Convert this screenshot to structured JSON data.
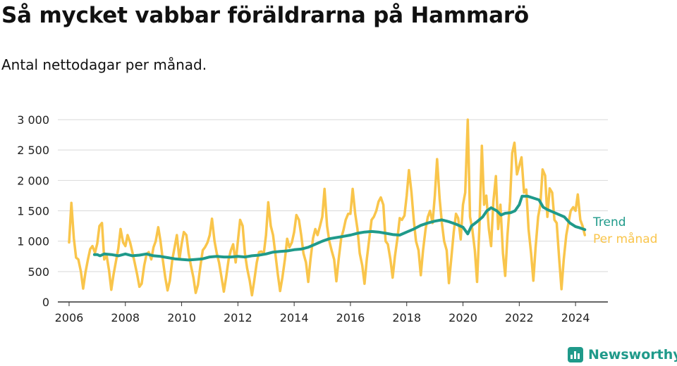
{
  "header": {
    "title": "Så mycket vabbar föräldrarna på Hammarö",
    "subtitle": "Antal nettodagar per månad."
  },
  "brand": {
    "name": "Newsworthy",
    "icon": "bar-chart-logo-icon",
    "color": "#1f9a8a"
  },
  "chart_data": {
    "type": "line",
    "title": "Så mycket vabbar föräldrarna på Hammarö",
    "subtitle": "Antal nettodagar per månad.",
    "xlabel": "",
    "ylabel": "",
    "xlim": [
      2005.6,
      2025.15
    ],
    "ylim": [
      0,
      3000
    ],
    "x_ticks": [
      2006,
      2008,
      2010,
      2012,
      2014,
      2016,
      2018,
      2020,
      2022,
      2024
    ],
    "y_ticks": [
      0,
      500,
      1000,
      1500,
      2000,
      2500,
      3000
    ],
    "y_tick_labels": [
      "0",
      "500",
      "1 000",
      "1 500",
      "2 000",
      "2 500",
      "3 000"
    ],
    "grid": "horizontal",
    "legend": "direct labels at right end of lines",
    "series": [
      {
        "name": "Per månad",
        "color": "#f9c54b",
        "points": [
          [
            2006.0,
            980
          ],
          [
            2006.08,
            1630
          ],
          [
            2006.17,
            1050
          ],
          [
            2006.25,
            730
          ],
          [
            2006.33,
            700
          ],
          [
            2006.42,
            500
          ],
          [
            2006.5,
            220
          ],
          [
            2006.58,
            480
          ],
          [
            2006.67,
            700
          ],
          [
            2006.75,
            870
          ],
          [
            2006.83,
            920
          ],
          [
            2006.92,
            810
          ],
          [
            2007.0,
            960
          ],
          [
            2007.08,
            1250
          ],
          [
            2007.17,
            1300
          ],
          [
            2007.25,
            700
          ],
          [
            2007.33,
            780
          ],
          [
            2007.42,
            520
          ],
          [
            2007.5,
            200
          ],
          [
            2007.58,
            450
          ],
          [
            2007.67,
            680
          ],
          [
            2007.75,
            880
          ],
          [
            2007.83,
            1200
          ],
          [
            2007.92,
            980
          ],
          [
            2008.0,
            920
          ],
          [
            2008.08,
            1100
          ],
          [
            2008.17,
            980
          ],
          [
            2008.25,
            820
          ],
          [
            2008.33,
            650
          ],
          [
            2008.42,
            450
          ],
          [
            2008.5,
            250
          ],
          [
            2008.58,
            300
          ],
          [
            2008.67,
            600
          ],
          [
            2008.75,
            780
          ],
          [
            2008.83,
            820
          ],
          [
            2008.92,
            700
          ],
          [
            2009.0,
            900
          ],
          [
            2009.08,
            1000
          ],
          [
            2009.17,
            1230
          ],
          [
            2009.25,
            1000
          ],
          [
            2009.33,
            700
          ],
          [
            2009.42,
            400
          ],
          [
            2009.5,
            190
          ],
          [
            2009.58,
            350
          ],
          [
            2009.67,
            700
          ],
          [
            2009.75,
            900
          ],
          [
            2009.83,
            1100
          ],
          [
            2009.92,
            700
          ],
          [
            2010.0,
            950
          ],
          [
            2010.08,
            1150
          ],
          [
            2010.17,
            1100
          ],
          [
            2010.25,
            800
          ],
          [
            2010.33,
            600
          ],
          [
            2010.42,
            400
          ],
          [
            2010.5,
            150
          ],
          [
            2010.58,
            280
          ],
          [
            2010.67,
            600
          ],
          [
            2010.75,
            850
          ],
          [
            2010.83,
            900
          ],
          [
            2010.92,
            980
          ],
          [
            2011.0,
            1100
          ],
          [
            2011.08,
            1370
          ],
          [
            2011.17,
            1000
          ],
          [
            2011.25,
            800
          ],
          [
            2011.33,
            650
          ],
          [
            2011.42,
            400
          ],
          [
            2011.5,
            170
          ],
          [
            2011.58,
            400
          ],
          [
            2011.67,
            700
          ],
          [
            2011.75,
            850
          ],
          [
            2011.83,
            950
          ],
          [
            2011.92,
            650
          ],
          [
            2012.0,
            1000
          ],
          [
            2012.08,
            1350
          ],
          [
            2012.17,
            1250
          ],
          [
            2012.25,
            800
          ],
          [
            2012.33,
            550
          ],
          [
            2012.42,
            350
          ],
          [
            2012.5,
            110
          ],
          [
            2012.58,
            350
          ],
          [
            2012.67,
            650
          ],
          [
            2012.75,
            820
          ],
          [
            2012.83,
            830
          ],
          [
            2012.92,
            800
          ],
          [
            2013.0,
            1100
          ],
          [
            2013.08,
            1640
          ],
          [
            2013.17,
            1250
          ],
          [
            2013.25,
            1100
          ],
          [
            2013.33,
            800
          ],
          [
            2013.42,
            450
          ],
          [
            2013.5,
            180
          ],
          [
            2013.58,
            400
          ],
          [
            2013.67,
            700
          ],
          [
            2013.75,
            1040
          ],
          [
            2013.83,
            900
          ],
          [
            2013.92,
            980
          ],
          [
            2014.0,
            1150
          ],
          [
            2014.08,
            1430
          ],
          [
            2014.17,
            1350
          ],
          [
            2014.25,
            1100
          ],
          [
            2014.33,
            800
          ],
          [
            2014.42,
            650
          ],
          [
            2014.5,
            330
          ],
          [
            2014.58,
            700
          ],
          [
            2014.67,
            1050
          ],
          [
            2014.75,
            1200
          ],
          [
            2014.83,
            1100
          ],
          [
            2014.92,
            1250
          ],
          [
            2015.0,
            1400
          ],
          [
            2015.08,
            1860
          ],
          [
            2015.17,
            1250
          ],
          [
            2015.25,
            1000
          ],
          [
            2015.33,
            850
          ],
          [
            2015.42,
            700
          ],
          [
            2015.5,
            340
          ],
          [
            2015.58,
            700
          ],
          [
            2015.67,
            1050
          ],
          [
            2015.75,
            1180
          ],
          [
            2015.83,
            1350
          ],
          [
            2015.92,
            1450
          ],
          [
            2016.0,
            1450
          ],
          [
            2016.08,
            1860
          ],
          [
            2016.17,
            1450
          ],
          [
            2016.25,
            1200
          ],
          [
            2016.33,
            800
          ],
          [
            2016.42,
            600
          ],
          [
            2016.5,
            300
          ],
          [
            2016.58,
            700
          ],
          [
            2016.67,
            1050
          ],
          [
            2016.75,
            1350
          ],
          [
            2016.83,
            1400
          ],
          [
            2016.92,
            1500
          ],
          [
            2017.0,
            1650
          ],
          [
            2017.08,
            1720
          ],
          [
            2017.17,
            1600
          ],
          [
            2017.25,
            1000
          ],
          [
            2017.33,
            950
          ],
          [
            2017.42,
            700
          ],
          [
            2017.5,
            400
          ],
          [
            2017.58,
            750
          ],
          [
            2017.67,
            1050
          ],
          [
            2017.75,
            1380
          ],
          [
            2017.83,
            1350
          ],
          [
            2017.92,
            1420
          ],
          [
            2018.0,
            1750
          ],
          [
            2018.08,
            2170
          ],
          [
            2018.17,
            1800
          ],
          [
            2018.25,
            1350
          ],
          [
            2018.33,
            1000
          ],
          [
            2018.42,
            850
          ],
          [
            2018.5,
            440
          ],
          [
            2018.58,
            850
          ],
          [
            2018.67,
            1200
          ],
          [
            2018.75,
            1400
          ],
          [
            2018.83,
            1500
          ],
          [
            2018.92,
            1300
          ],
          [
            2019.0,
            1750
          ],
          [
            2019.08,
            2350
          ],
          [
            2019.17,
            1700
          ],
          [
            2019.25,
            1300
          ],
          [
            2019.33,
            1000
          ],
          [
            2019.42,
            850
          ],
          [
            2019.5,
            310
          ],
          [
            2019.58,
            700
          ],
          [
            2019.67,
            1150
          ],
          [
            2019.75,
            1450
          ],
          [
            2019.83,
            1380
          ],
          [
            2019.92,
            1030
          ],
          [
            2020.0,
            1600
          ],
          [
            2020.08,
            1800
          ],
          [
            2020.17,
            3000
          ],
          [
            2020.25,
            1400
          ],
          [
            2020.33,
            1200
          ],
          [
            2020.42,
            850
          ],
          [
            2020.5,
            330
          ],
          [
            2020.58,
            1200
          ],
          [
            2020.67,
            2570
          ],
          [
            2020.75,
            1600
          ],
          [
            2020.83,
            1750
          ],
          [
            2020.92,
            1200
          ],
          [
            2021.0,
            920
          ],
          [
            2021.08,
            1650
          ],
          [
            2021.17,
            2070
          ],
          [
            2021.25,
            1200
          ],
          [
            2021.33,
            1600
          ],
          [
            2021.42,
            800
          ],
          [
            2021.5,
            430
          ],
          [
            2021.58,
            1100
          ],
          [
            2021.67,
            1650
          ],
          [
            2021.75,
            2450
          ],
          [
            2021.83,
            2620
          ],
          [
            2021.92,
            2100
          ],
          [
            2022.0,
            2240
          ],
          [
            2022.08,
            2380
          ],
          [
            2022.17,
            1800
          ],
          [
            2022.25,
            1850
          ],
          [
            2022.33,
            1200
          ],
          [
            2022.42,
            800
          ],
          [
            2022.5,
            350
          ],
          [
            2022.58,
            900
          ],
          [
            2022.67,
            1400
          ],
          [
            2022.75,
            1600
          ],
          [
            2022.83,
            2180
          ],
          [
            2022.92,
            2080
          ],
          [
            2023.0,
            1400
          ],
          [
            2023.08,
            1870
          ],
          [
            2023.17,
            1800
          ],
          [
            2023.25,
            1350
          ],
          [
            2023.33,
            1300
          ],
          [
            2023.42,
            700
          ],
          [
            2023.5,
            210
          ],
          [
            2023.58,
            700
          ],
          [
            2023.67,
            1100
          ],
          [
            2023.75,
            1300
          ],
          [
            2023.83,
            1500
          ],
          [
            2023.92,
            1560
          ],
          [
            2024.0,
            1500
          ],
          [
            2024.08,
            1770
          ],
          [
            2024.17,
            1350
          ],
          [
            2024.25,
            1250
          ],
          [
            2024.33,
            1100
          ]
        ]
      },
      {
        "name": "Trend",
        "color": "#1f9a8a",
        "points": [
          [
            2006.9,
            780
          ],
          [
            2007.0,
            780
          ],
          [
            2007.1,
            760
          ],
          [
            2007.25,
            790
          ],
          [
            2007.5,
            780
          ],
          [
            2007.75,
            760
          ],
          [
            2008.0,
            790
          ],
          [
            2008.25,
            760
          ],
          [
            2008.5,
            770
          ],
          [
            2008.75,
            790
          ],
          [
            2009.0,
            760
          ],
          [
            2009.25,
            750
          ],
          [
            2009.5,
            730
          ],
          [
            2009.75,
            710
          ],
          [
            2010.0,
            700
          ],
          [
            2010.25,
            690
          ],
          [
            2010.5,
            700
          ],
          [
            2010.75,
            710
          ],
          [
            2011.0,
            740
          ],
          [
            2011.25,
            750
          ],
          [
            2011.5,
            740
          ],
          [
            2011.75,
            740
          ],
          [
            2012.0,
            750
          ],
          [
            2012.25,
            740
          ],
          [
            2012.5,
            760
          ],
          [
            2012.75,
            770
          ],
          [
            2013.0,
            790
          ],
          [
            2013.25,
            820
          ],
          [
            2013.5,
            830
          ],
          [
            2013.75,
            840
          ],
          [
            2014.0,
            860
          ],
          [
            2014.25,
            870
          ],
          [
            2014.5,
            900
          ],
          [
            2014.75,
            950
          ],
          [
            2015.0,
            1000
          ],
          [
            2015.25,
            1040
          ],
          [
            2015.5,
            1060
          ],
          [
            2015.75,
            1080
          ],
          [
            2016.0,
            1100
          ],
          [
            2016.25,
            1130
          ],
          [
            2016.5,
            1150
          ],
          [
            2016.75,
            1160
          ],
          [
            2017.0,
            1150
          ],
          [
            2017.25,
            1130
          ],
          [
            2017.5,
            1110
          ],
          [
            2017.75,
            1100
          ],
          [
            2018.0,
            1150
          ],
          [
            2018.25,
            1200
          ],
          [
            2018.5,
            1260
          ],
          [
            2018.75,
            1300
          ],
          [
            2019.0,
            1330
          ],
          [
            2019.25,
            1350
          ],
          [
            2019.5,
            1320
          ],
          [
            2019.75,
            1280
          ],
          [
            2020.0,
            1230
          ],
          [
            2020.17,
            1120
          ],
          [
            2020.3,
            1250
          ],
          [
            2020.5,
            1320
          ],
          [
            2020.7,
            1400
          ],
          [
            2020.85,
            1500
          ],
          [
            2021.0,
            1550
          ],
          [
            2021.2,
            1500
          ],
          [
            2021.35,
            1430
          ],
          [
            2021.5,
            1460
          ],
          [
            2021.7,
            1470
          ],
          [
            2021.85,
            1500
          ],
          [
            2022.0,
            1600
          ],
          [
            2022.1,
            1740
          ],
          [
            2022.3,
            1740
          ],
          [
            2022.5,
            1710
          ],
          [
            2022.7,
            1680
          ],
          [
            2022.85,
            1560
          ],
          [
            2023.0,
            1520
          ],
          [
            2023.2,
            1480
          ],
          [
            2023.4,
            1440
          ],
          [
            2023.6,
            1400
          ],
          [
            2023.8,
            1300
          ],
          [
            2024.0,
            1240
          ],
          [
            2024.15,
            1220
          ],
          [
            2024.33,
            1190
          ]
        ]
      }
    ]
  }
}
